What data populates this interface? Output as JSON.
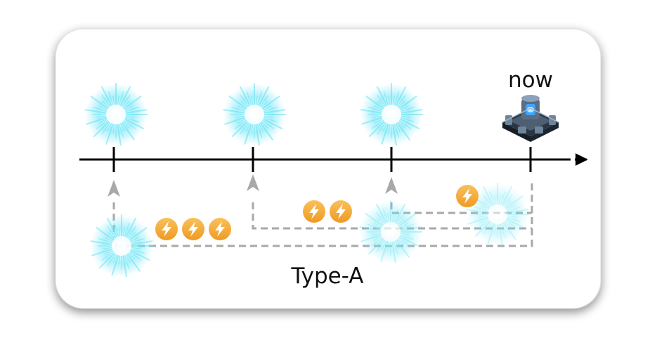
{
  "diagram": {
    "now_label": "now",
    "type_label": "Type-A",
    "energy_groups": [
      {
        "id": "group-1",
        "count": 3
      },
      {
        "id": "group-2",
        "count": 2
      },
      {
        "id": "group-3",
        "count": 1
      }
    ],
    "icons": {
      "event": "cyan-starburst-icon",
      "energy": "lightning-bolt-icon",
      "now": "isometric-structure-icon",
      "arrow": "arrow-up-icon"
    },
    "colors": {
      "timeline": "#000000",
      "dashed": "#a8a8a8",
      "energy": "#f5ad3a",
      "burst": "#6ee6f5",
      "card_bg": "#ffffff",
      "card_shadow": "#b5b5b5"
    }
  }
}
